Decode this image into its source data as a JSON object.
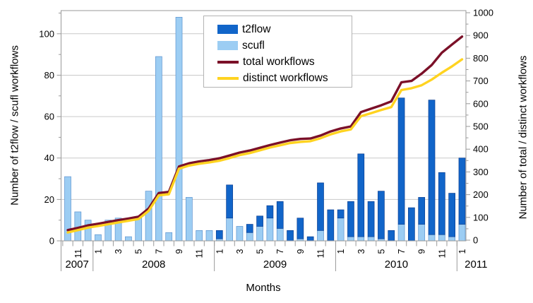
{
  "chart_data": {
    "type": "bar+line combo",
    "months": [
      "Oct 2007",
      "Nov 2007",
      "Dec 2007",
      "Jan 2008",
      "Feb 2008",
      "Mar 2008",
      "Apr 2008",
      "May 2008",
      "Jun 2008",
      "Jul 2008",
      "Aug 2008",
      "Sep 2008",
      "Oct 2008",
      "Nov 2008",
      "Dec 2008",
      "Jan 2009",
      "Feb 2009",
      "Mar 2009",
      "Apr 2009",
      "May 2009",
      "Jun 2009",
      "Jul 2009",
      "Aug 2009",
      "Sep 2009",
      "Oct 2009",
      "Nov 2009",
      "Dec 2009",
      "Jan 2010",
      "Feb 2010",
      "Mar 2010",
      "Apr 2010",
      "May 2010",
      "Jun 2010",
      "Jul 2010",
      "Aug 2010",
      "Sep 2010",
      "Oct 2010",
      "Nov 2010",
      "Dec 2010",
      "Jan 2011"
    ],
    "series": [
      {
        "name": "t2flow",
        "type": "bar",
        "axis": "left",
        "color": "#1165c9",
        "border": "#0b3f93",
        "values": [
          0,
          0,
          0,
          0,
          0,
          0,
          0,
          0,
          0,
          0,
          0,
          0,
          0,
          0,
          0,
          4,
          16,
          0,
          4,
          5,
          6,
          13,
          5,
          10,
          2,
          23,
          15,
          4,
          17,
          40,
          17,
          23,
          5,
          61,
          16,
          13,
          65,
          30,
          21,
          32
        ]
      },
      {
        "name": "scufl",
        "type": "bar",
        "axis": "left",
        "color": "#9ccdf3",
        "border": "#5c93cf",
        "values": [
          31,
          14,
          10,
          3,
          10,
          11,
          2,
          11,
          24,
          89,
          4,
          108,
          21,
          5,
          5,
          1,
          11,
          7,
          4,
          7,
          11,
          6,
          0,
          1,
          0,
          5,
          0,
          11,
          2,
          2,
          2,
          1,
          0,
          8,
          0,
          8,
          3,
          3,
          2,
          8
        ]
      },
      {
        "name": "total workflows",
        "type": "line",
        "axis": "right",
        "color": "#7b1028",
        "values": [
          44,
          54,
          65,
          72,
          80,
          88,
          95,
          103,
          139,
          207,
          212,
          324,
          338,
          346,
          352,
          360,
          372,
          385,
          394,
          406,
          418,
          429,
          439,
          445,
          447,
          460,
          478,
          491,
          500,
          563,
          578,
          593,
          610,
          694,
          700,
          732,
          770,
          824,
          860,
          895
        ]
      },
      {
        "name": "distinct workflows",
        "type": "line",
        "axis": "right",
        "color": "#ffd320",
        "values": [
          34,
          44,
          55,
          62,
          70,
          78,
          85,
          93,
          129,
          197,
          202,
          314,
          328,
          336,
          342,
          349,
          361,
          374,
          383,
          395,
          407,
          417,
          427,
          432,
          435,
          448,
          465,
          478,
          487,
          545,
          558,
          572,
          585,
          660,
          668,
          681,
          706,
          736,
          764,
          795
        ]
      }
    ],
    "bar_stack_order": [
      "scufl",
      "t2flow"
    ],
    "left_axis": {
      "title": "Number of t2flow / scufl workflows",
      "min": 0,
      "max": 110,
      "major": 20,
      "minor": 10,
      "tick_labels": [
        "0",
        "20",
        "40",
        "60",
        "80",
        "100"
      ]
    },
    "right_axis": {
      "title": "Number of total / distinct workflows",
      "min": 0,
      "max": 1000,
      "major": 100,
      "minor": 50,
      "tick_labels": [
        "0",
        "100",
        "200",
        "300",
        "400",
        "500",
        "600",
        "700",
        "800",
        "900",
        "1000"
      ]
    },
    "x_axis": {
      "title": "Months",
      "tick_labels": [
        {
          "i": 1,
          "label": "11"
        },
        {
          "i": 3,
          "label": "1"
        },
        {
          "i": 5,
          "label": "3"
        },
        {
          "i": 7,
          "label": "5"
        },
        {
          "i": 9,
          "label": "7"
        },
        {
          "i": 11,
          "label": "9"
        },
        {
          "i": 13,
          "label": "11"
        },
        {
          "i": 15,
          "label": "1"
        },
        {
          "i": 17,
          "label": "3"
        },
        {
          "i": 19,
          "label": "5"
        },
        {
          "i": 21,
          "label": "7"
        },
        {
          "i": 23,
          "label": "9"
        },
        {
          "i": 25,
          "label": "11"
        },
        {
          "i": 27,
          "label": "1"
        },
        {
          "i": 29,
          "label": "3"
        },
        {
          "i": 31,
          "label": "5"
        },
        {
          "i": 33,
          "label": "7"
        },
        {
          "i": 35,
          "label": "9"
        },
        {
          "i": 37,
          "label": "11"
        },
        {
          "i": 39,
          "label": "1"
        }
      ],
      "years": [
        {
          "label": "2007",
          "start": 0,
          "end": 2
        },
        {
          "label": "2008",
          "start": 3,
          "end": 14
        },
        {
          "label": "2009",
          "start": 15,
          "end": 26
        },
        {
          "label": "2010",
          "start": 27,
          "end": 38
        },
        {
          "label": "2011",
          "start": 39,
          "end": 39
        }
      ]
    },
    "legend_position": "top-center-inside",
    "grid": "horizontal-major",
    "colors": {
      "background": "#ffffff",
      "gridline": "#c9c9c9",
      "frame": "#9a9a9a",
      "text": "#000000"
    }
  }
}
